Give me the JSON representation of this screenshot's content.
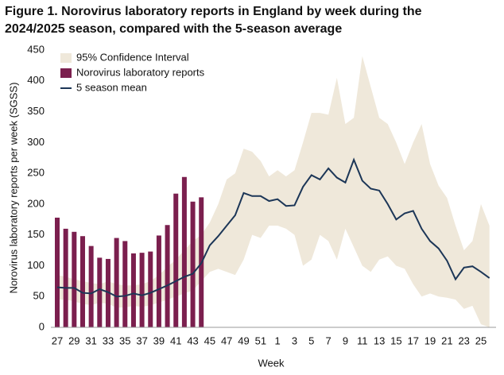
{
  "chart_data": {
    "type": "combo",
    "title": "Figure 1. Norovirus laboratory reports in England by week during the 2024/2025 season, compared with the 5-season average",
    "x_label": "Week",
    "y_label": "Norovirus laboratory reports per week (SGSS)",
    "categories": [
      "27",
      null,
      "29",
      null,
      "31",
      null,
      "33",
      null,
      "35",
      null,
      "37",
      null,
      "39",
      null,
      "41",
      null,
      "43",
      null,
      "45",
      null,
      "47",
      null,
      "49",
      null,
      "51",
      null,
      "1",
      null,
      "3",
      null,
      "5",
      null,
      "7",
      null,
      "9",
      null,
      "11",
      null,
      "13",
      null,
      "15",
      null,
      "17",
      null,
      "19",
      null,
      "21",
      null,
      "23",
      null,
      "25",
      null
    ],
    "ylim": [
      0,
      450
    ],
    "yticks": [
      0,
      50,
      100,
      150,
      200,
      250,
      300,
      350,
      400,
      450
    ],
    "legend": "top-left",
    "series": [
      {
        "name": "95% Confidence Interval",
        "type": "band",
        "color": "#efe8da",
        "upper": [
          85,
          82,
          78,
          75,
          72,
          70,
          75,
          70,
          68,
          68,
          70,
          75,
          85,
          98,
          110,
          125,
          140,
          150,
          170,
          200,
          240,
          250,
          290,
          285,
          270,
          245,
          255,
          245,
          255,
          300,
          348,
          348,
          345,
          405,
          330,
          340,
          440,
          390,
          340,
          330,
          300,
          265,
          300,
          330,
          265,
          230,
          210,
          165,
          125,
          140,
          200,
          165
        ],
        "lower": [
          45,
          45,
          42,
          38,
          36,
          40,
          38,
          32,
          32,
          35,
          33,
          36,
          40,
          45,
          50,
          55,
          60,
          75,
          90,
          95,
          90,
          85,
          110,
          150,
          145,
          165,
          165,
          160,
          150,
          100,
          110,
          150,
          140,
          110,
          160,
          130,
          100,
          90,
          110,
          115,
          100,
          95,
          70,
          50,
          55,
          50,
          48,
          45,
          30,
          35,
          5,
          0
        ]
      },
      {
        "name": "Norovirus laboratory reports",
        "type": "bar",
        "color": "#7b1f4e",
        "values": [
          178,
          160,
          155,
          148,
          132,
          113,
          111,
          145,
          140,
          120,
          121,
          123,
          149,
          166,
          217,
          244,
          204,
          211,
          null,
          null,
          null,
          null,
          null,
          null,
          null,
          null,
          null,
          null,
          null,
          null,
          null,
          null,
          null,
          null,
          null,
          null,
          null,
          null,
          null,
          null,
          null,
          null,
          null,
          null,
          null,
          null,
          null,
          null,
          null,
          null,
          null,
          null
        ]
      },
      {
        "name": "5 season mean",
        "type": "line",
        "color": "#1c3657",
        "values": [
          65,
          64,
          64,
          56,
          55,
          62,
          57,
          50,
          51,
          55,
          52,
          56,
          62,
          68,
          75,
          82,
          87,
          104,
          133,
          148,
          165,
          182,
          218,
          213,
          213,
          205,
          208,
          197,
          198,
          228,
          247,
          240,
          258,
          243,
          235,
          272,
          238,
          225,
          222,
          200,
          175,
          185,
          189,
          160,
          140,
          128,
          108,
          78,
          97,
          99,
          90,
          80
        ]
      }
    ]
  }
}
